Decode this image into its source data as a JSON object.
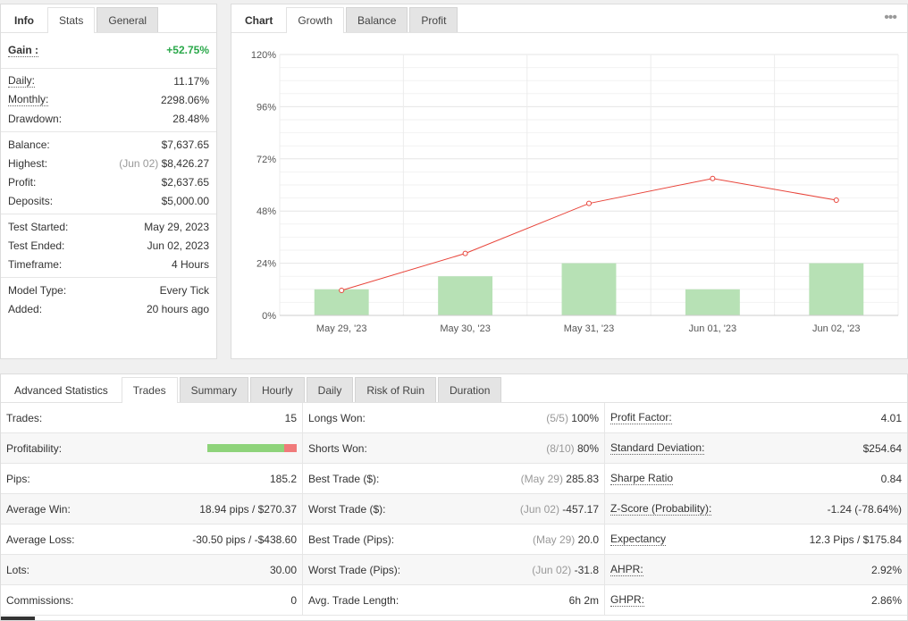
{
  "left": {
    "tabs": [
      "Info",
      "Stats",
      "General"
    ],
    "gain": {
      "label": "Gain :",
      "value": "+52.75%"
    },
    "groups": [
      [
        {
          "label": "Daily:",
          "value": "11.17%",
          "ul": true
        },
        {
          "label": "Monthly:",
          "value": "2298.06%",
          "ul": true
        },
        {
          "label": "Drawdown:",
          "value": "28.48%",
          "ul": false
        }
      ],
      [
        {
          "label": "Balance:",
          "value": "$7,637.65"
        },
        {
          "label": "Highest:",
          "note": "(Jun 02)",
          "value": "$8,426.27"
        },
        {
          "label": "Profit:",
          "value": "$2,637.65",
          "green": true
        },
        {
          "label": "Deposits:",
          "value": "$5,000.00"
        }
      ],
      [
        {
          "label": "Test Started:",
          "value": "May 29, 2023"
        },
        {
          "label": "Test Ended:",
          "value": "Jun 02, 2023"
        },
        {
          "label": "Timeframe:",
          "value": "4 Hours"
        }
      ],
      [
        {
          "label": "Model Type:",
          "value": "Every Tick"
        },
        {
          "label": "Added:",
          "value": "20 hours ago"
        }
      ]
    ]
  },
  "chart_panel": {
    "tabs": [
      "Chart",
      "Growth",
      "Balance",
      "Profit"
    ],
    "menu_icon": "more-dots-icon"
  },
  "chart_data": {
    "type": "bar+line",
    "categories": [
      "May 29, '23",
      "May 30, '23",
      "May 31, '23",
      "Jun 01, '23",
      "Jun 02, '23"
    ],
    "bars": [
      12,
      18,
      24,
      12,
      24
    ],
    "line": [
      11.5,
      28.5,
      51.5,
      63,
      53
    ],
    "ylim": [
      0,
      120
    ],
    "yticks": [
      "0%",
      "24%",
      "48%",
      "72%",
      "96%",
      "120%"
    ],
    "ytick_values": [
      0,
      24,
      48,
      72,
      96,
      120
    ],
    "grid": true,
    "bar_color": "#b7e1b5",
    "line_color": "#e8443a"
  },
  "bottom": {
    "tabs": [
      "Advanced Statistics",
      "Trades",
      "Summary",
      "Hourly",
      "Daily",
      "Risk of Ruin",
      "Duration"
    ],
    "col1": [
      {
        "label": "Trades:",
        "value": "15"
      },
      {
        "label": "Profitability:",
        "bar": {
          "green": 0.86,
          "red": 0.14
        }
      },
      {
        "label": "Pips:",
        "value": "185.2"
      },
      {
        "label": "Average Win:",
        "value": "18.94 pips / $270.37"
      },
      {
        "label": "Average Loss:",
        "value": "-30.50 pips / -$438.60"
      },
      {
        "label": "Lots:",
        "value": "30.00"
      },
      {
        "label": "Commissions:",
        "value": "0"
      }
    ],
    "col2": [
      {
        "label": "Longs Won:",
        "note": "(5/5)",
        "value": "100%"
      },
      {
        "label": "Shorts Won:",
        "note": "(8/10)",
        "value": "80%"
      },
      {
        "label": "Best Trade ($):",
        "note": "(May 29)",
        "value": "285.83"
      },
      {
        "label": "Worst Trade ($):",
        "note": "(Jun 02)",
        "value": "-457.17"
      },
      {
        "label": "Best Trade (Pips):",
        "note": "(May 29)",
        "value": "20.0"
      },
      {
        "label": "Worst Trade (Pips):",
        "note": "(Jun 02)",
        "value": "-31.8"
      },
      {
        "label": "Avg. Trade Length:",
        "value": "6h 2m"
      }
    ],
    "col3": [
      {
        "label": "Profit Factor:",
        "value": "4.01"
      },
      {
        "label": "Standard Deviation:",
        "value": "$254.64"
      },
      {
        "label": "Sharpe Ratio",
        "value": "0.84"
      },
      {
        "label": "Z-Score (Probability):",
        "value": "-1.24 (-78.64%)"
      },
      {
        "label": "Expectancy",
        "value": "12.3 Pips / $175.84"
      },
      {
        "label": "AHPR:",
        "value": "2.92%"
      },
      {
        "label": "GHPR:",
        "value": "2.86%"
      }
    ]
  }
}
